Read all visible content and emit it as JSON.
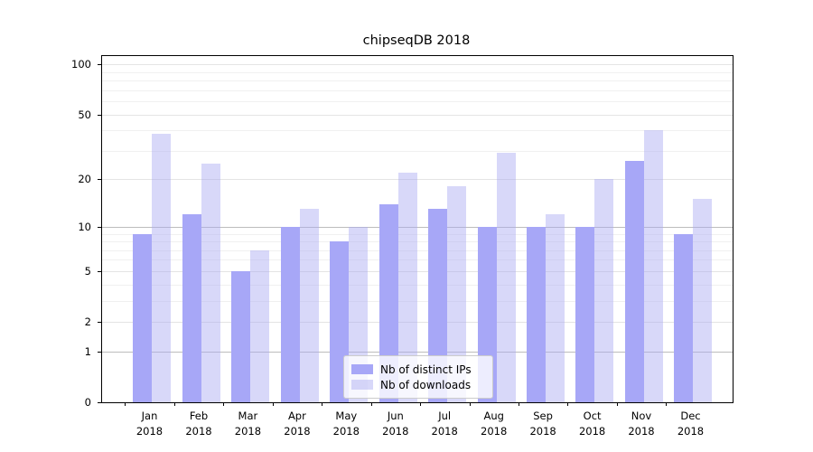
{
  "chart_data": {
    "type": "bar",
    "title": "chipseqDB 2018",
    "scale": "log1p",
    "ylim": [
      0,
      112
    ],
    "grid": "on",
    "legend_position": "lower-center-inside",
    "categories": [
      {
        "month": "Jan",
        "year": "2018"
      },
      {
        "month": "Feb",
        "year": "2018"
      },
      {
        "month": "Mar",
        "year": "2018"
      },
      {
        "month": "Apr",
        "year": "2018"
      },
      {
        "month": "May",
        "year": "2018"
      },
      {
        "month": "Jun",
        "year": "2018"
      },
      {
        "month": "Jul",
        "year": "2018"
      },
      {
        "month": "Aug",
        "year": "2018"
      },
      {
        "month": "Sep",
        "year": "2018"
      },
      {
        "month": "Oct",
        "year": "2018"
      },
      {
        "month": "Nov",
        "year": "2018"
      },
      {
        "month": "Dec",
        "year": "2018"
      }
    ],
    "series": [
      {
        "name": "Nb of distinct IPs",
        "color": "#a7a7f7",
        "values": [
          9,
          12,
          5,
          10,
          8,
          14,
          13,
          10,
          10,
          10,
          26,
          9
        ]
      },
      {
        "name": "Nb of downloads",
        "color": "rgba(169,169,242,0.45)",
        "values": [
          38,
          25,
          7,
          13,
          10,
          22,
          18,
          29,
          12,
          20,
          40,
          15
        ]
      }
    ],
    "y_ticks": [
      0,
      1,
      2,
      5,
      10,
      20,
      50,
      100
    ],
    "gridlines": {
      "major": [
        1,
        10
      ],
      "mid": [
        2,
        5,
        20,
        50,
        100
      ],
      "minor": [
        3,
        4,
        6,
        7,
        8,
        9,
        30,
        40,
        60,
        70,
        80,
        90
      ]
    }
  }
}
